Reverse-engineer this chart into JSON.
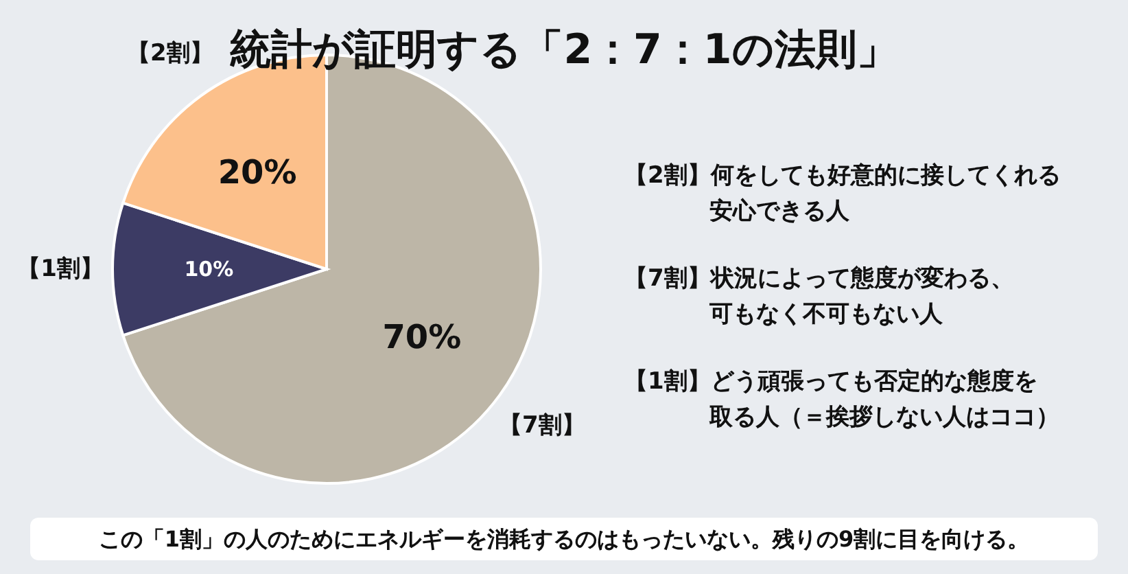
{
  "chart_data": {
    "type": "pie",
    "title": "統計が証明する「2：7：1の法則」",
    "categories": [
      "【7割】",
      "【1割】",
      "【2割】"
    ],
    "values": [
      70,
      10,
      20
    ],
    "colors": [
      "#bdb6a7",
      "#3c3b64",
      "#fcc08b"
    ],
    "value_labels": [
      "70%",
      "10%",
      "20%"
    ],
    "annotations": [
      "【2割】何をしても好意的に接してくれる安心できる人",
      "【7割】状況によって態度が変わる、可もなく不可もない人",
      "【1割】どう頑張っても否定的な態度を取る人（＝挨拶しない人はココ）",
      "この「1割」の人のためにエネルギーを消耗するのはもったいない。残りの9割に目を向ける。"
    ]
  }
}
